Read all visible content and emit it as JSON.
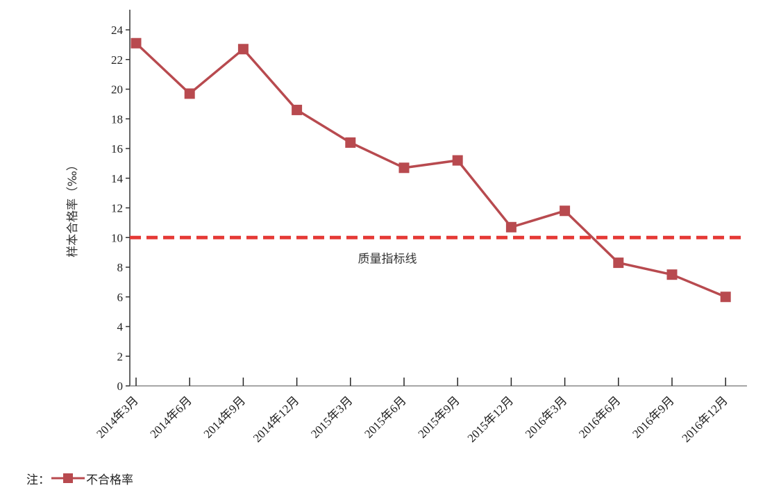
{
  "chart_data": {
    "type": "line",
    "title": "",
    "xlabel": "",
    "ylabel": "样本合格率（‰）",
    "ylim": [
      0,
      25
    ],
    "yticks": [
      0,
      2,
      4,
      6,
      8,
      10,
      12,
      14,
      16,
      18,
      20,
      22,
      24
    ],
    "categories": [
      "2014年3月",
      "2014年6月",
      "2014年9月",
      "2014年12月",
      "2015年3月",
      "2015年6月",
      "2015年9月",
      "2015年12月",
      "2016年3月",
      "2016年6月",
      "2016年9月",
      "2016年12月"
    ],
    "series": [
      {
        "name": "不合格率",
        "color": "#b84a4f",
        "marker": "square",
        "values": [
          23.1,
          19.7,
          22.7,
          18.6,
          16.4,
          14.7,
          15.2,
          10.7,
          11.8,
          8.3,
          7.5,
          6.0
        ]
      }
    ],
    "reference_line": {
      "value": 10,
      "label": "质量指标线",
      "color": "#e53935",
      "style": "dashed"
    },
    "grid": false,
    "legend": {
      "placement": "bottom-left",
      "prefix": "注：",
      "label": "不合格率"
    }
  }
}
